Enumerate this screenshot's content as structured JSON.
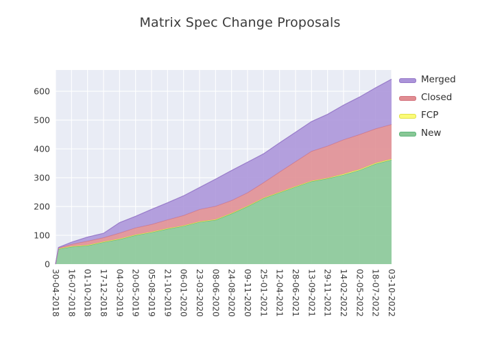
{
  "title": "Matrix Spec Change Proposals",
  "legend": {
    "entries": [
      {
        "label": "Merged",
        "color": "#ab94d9",
        "edge": "#9678c8"
      },
      {
        "label": "Closed",
        "color": "#e08d92",
        "edge": "#d4747f"
      },
      {
        "label": "FCP",
        "color": "#fbfb77",
        "edge": "#e0e04a"
      },
      {
        "label": "New",
        "color": "#88c795",
        "edge": "#5cb57a"
      }
    ]
  },
  "chart_data": {
    "type": "area",
    "stacked": true,
    "title": "Matrix Spec Change Proposals",
    "xlabel": "",
    "ylabel": "",
    "plot_bg": "#e9ecf5",
    "grid_color": "#ffffff",
    "grid_on": true,
    "legend_position": "upper right, outside axes",
    "ylim": [
      0,
      674
    ],
    "yticks": [
      0,
      100,
      200,
      300,
      400,
      500,
      600
    ],
    "x_tick_labels": [
      "30-04-2018",
      "16-07-2018",
      "01-10-2018",
      "17-12-2018",
      "04-03-2019",
      "20-05-2019",
      "05-08-2019",
      "21-10-2019",
      "06-01-2020",
      "23-03-2020",
      "08-06-2020",
      "24-08-2020",
      "09-11-2020",
      "25-01-2021",
      "12-04-2021",
      "28-06-2021",
      "13-09-2021",
      "29-11-2021",
      "14-02-2022",
      "02-05-2022",
      "18-07-2022",
      "03-10-2022"
    ],
    "x": [
      "30-04-2018",
      "14-05-2018",
      "16-07-2018",
      "01-10-2018",
      "17-12-2018",
      "04-03-2019",
      "20-05-2019",
      "05-08-2019",
      "21-10-2019",
      "06-01-2020",
      "23-03-2020",
      "08-06-2020",
      "24-08-2020",
      "09-11-2020",
      "25-01-2021",
      "12-04-2021",
      "28-06-2021",
      "13-09-2021",
      "29-11-2021",
      "14-02-2022",
      "02-05-2022",
      "18-07-2022",
      "03-10-2022"
    ],
    "series": [
      {
        "name": "New",
        "color": "#88c795",
        "edge": "#5cb57a",
        "values": [
          0,
          52,
          60,
          64,
          76,
          86,
          100,
          110,
          122,
          132,
          146,
          153,
          175,
          200,
          228,
          248,
          268,
          287,
          297,
          310,
          326,
          348,
          362
        ]
      },
      {
        "name": "FCP",
        "color": "#fbfb77",
        "edge": "#e0e04a",
        "values": [
          0,
          2,
          2,
          2,
          2,
          2,
          2,
          2,
          2,
          2,
          2,
          2,
          2,
          2,
          2,
          2,
          2,
          2,
          2,
          3,
          3,
          3,
          3
        ]
      },
      {
        "name": "Closed",
        "color": "#e08d92",
        "edge": "#d4747f",
        "values": [
          0,
          2,
          7,
          14,
          14,
          20,
          24,
          26,
          30,
          35,
          42,
          46,
          44,
          46,
          53,
          70,
          86,
          103,
          111,
          119,
          121,
          119,
          120
        ]
      },
      {
        "name": "Merged",
        "color": "#ab94d9",
        "edge": "#9678c8",
        "values": [
          0,
          2,
          7,
          14,
          15,
          36,
          40,
          52,
          59,
          68,
          76,
          94,
          104,
          106,
          100,
          101,
          102,
          103,
          110,
          120,
          130,
          142,
          157
        ]
      }
    ]
  }
}
